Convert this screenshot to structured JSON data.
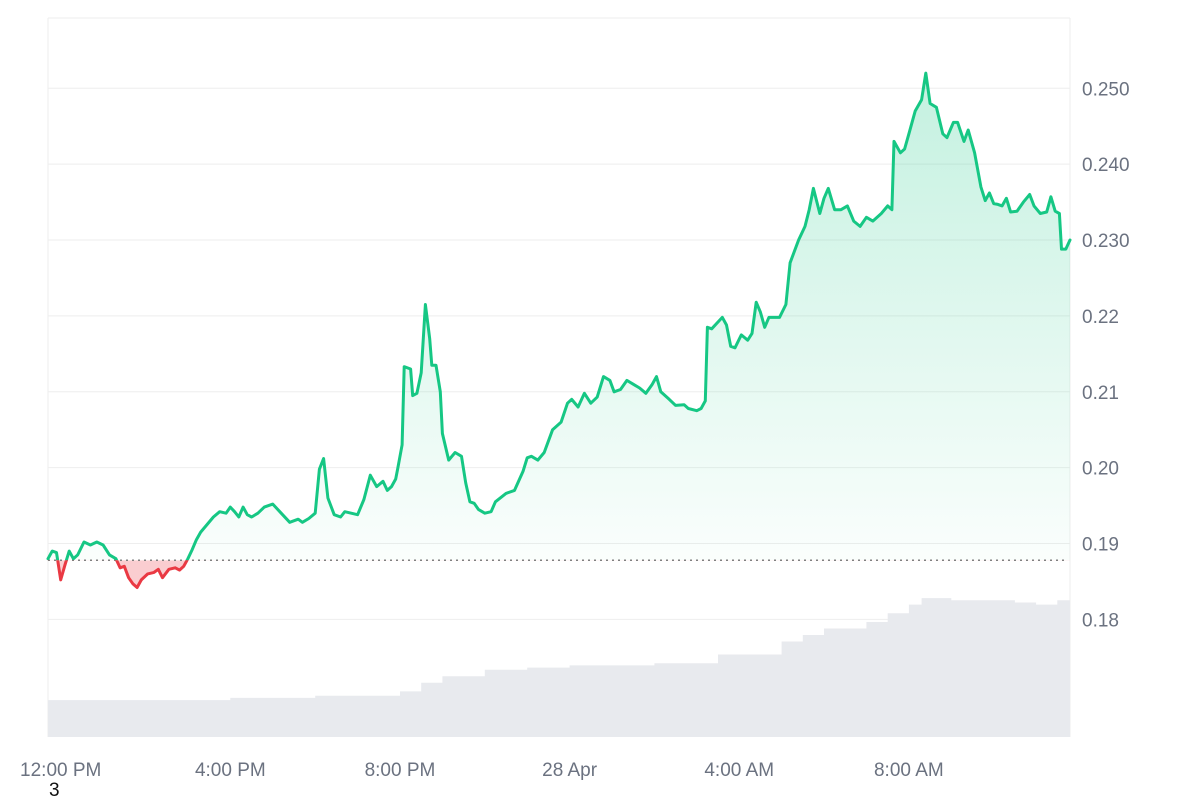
{
  "chart_data": {
    "type": "area",
    "title": "",
    "xlabel": "",
    "ylabel": "",
    "baseline": 0.1878,
    "ylim": [
      0.1645,
      0.259
    ],
    "y_ticks": [
      {
        "value": 0.18,
        "label": "0.18"
      },
      {
        "value": 0.19,
        "label": "0.19"
      },
      {
        "value": 0.2,
        "label": "0.20"
      },
      {
        "value": 0.21,
        "label": "0.21"
      },
      {
        "value": 0.22,
        "label": "0.22"
      },
      {
        "value": 0.23,
        "label": "0.230"
      },
      {
        "value": 0.24,
        "label": "0.240"
      },
      {
        "value": 0.25,
        "label": "0.250"
      }
    ],
    "x_range": [
      11.7,
      35.8
    ],
    "x_ticks": [
      {
        "value": 12,
        "label": "12:00 PM"
      },
      {
        "value": 16,
        "label": "4:00 PM"
      },
      {
        "value": 20,
        "label": "8:00 PM"
      },
      {
        "value": 24,
        "label": "28 Apr"
      },
      {
        "value": 28,
        "label": "4:00 AM"
      },
      {
        "value": 32,
        "label": "8:00 AM"
      }
    ],
    "x_unit": "hours from 00:00 on 27 Apr",
    "price_points": [
      [
        11.7,
        0.188
      ],
      [
        11.8,
        0.189
      ],
      [
        11.9,
        0.1888
      ],
      [
        12.0,
        0.1852
      ],
      [
        12.1,
        0.1872
      ],
      [
        12.2,
        0.189
      ],
      [
        12.3,
        0.188
      ],
      [
        12.4,
        0.1885
      ],
      [
        12.55,
        0.1902
      ],
      [
        12.7,
        0.1898
      ],
      [
        12.85,
        0.1902
      ],
      [
        13.0,
        0.1898
      ],
      [
        13.15,
        0.1885
      ],
      [
        13.3,
        0.188
      ],
      [
        13.4,
        0.1868
      ],
      [
        13.5,
        0.187
      ],
      [
        13.6,
        0.1855
      ],
      [
        13.7,
        0.1847
      ],
      [
        13.8,
        0.1842
      ],
      [
        13.9,
        0.1852
      ],
      [
        14.05,
        0.186
      ],
      [
        14.2,
        0.1862
      ],
      [
        14.3,
        0.1866
      ],
      [
        14.4,
        0.1855
      ],
      [
        14.55,
        0.1866
      ],
      [
        14.7,
        0.1868
      ],
      [
        14.8,
        0.1865
      ],
      [
        14.9,
        0.187
      ],
      [
        15.0,
        0.188
      ],
      [
        15.1,
        0.1892
      ],
      [
        15.2,
        0.1905
      ],
      [
        15.3,
        0.1915
      ],
      [
        15.45,
        0.1925
      ],
      [
        15.6,
        0.1935
      ],
      [
        15.75,
        0.1942
      ],
      [
        15.9,
        0.194
      ],
      [
        16.0,
        0.1948
      ],
      [
        16.1,
        0.1942
      ],
      [
        16.2,
        0.1935
      ],
      [
        16.3,
        0.1948
      ],
      [
        16.4,
        0.1938
      ],
      [
        16.5,
        0.1935
      ],
      [
        16.65,
        0.194
      ],
      [
        16.8,
        0.1948
      ],
      [
        17.0,
        0.1952
      ],
      [
        17.2,
        0.194
      ],
      [
        17.4,
        0.1928
      ],
      [
        17.6,
        0.1932
      ],
      [
        17.7,
        0.1928
      ],
      [
        17.85,
        0.1933
      ],
      [
        18.0,
        0.194
      ],
      [
        18.1,
        0.1998
      ],
      [
        18.2,
        0.2012
      ],
      [
        18.3,
        0.196
      ],
      [
        18.45,
        0.1938
      ],
      [
        18.6,
        0.1935
      ],
      [
        18.7,
        0.1942
      ],
      [
        18.85,
        0.194
      ],
      [
        19.0,
        0.1938
      ],
      [
        19.15,
        0.1958
      ],
      [
        19.3,
        0.199
      ],
      [
        19.45,
        0.1975
      ],
      [
        19.6,
        0.1982
      ],
      [
        19.7,
        0.197
      ],
      [
        19.8,
        0.1975
      ],
      [
        19.9,
        0.1985
      ],
      [
        19.95,
        0.2
      ],
      [
        20.05,
        0.203
      ],
      [
        20.1,
        0.2133
      ],
      [
        20.25,
        0.213
      ],
      [
        20.3,
        0.2095
      ],
      [
        20.4,
        0.2098
      ],
      [
        20.5,
        0.2125
      ],
      [
        20.6,
        0.2215
      ],
      [
        20.7,
        0.217
      ],
      [
        20.75,
        0.2135
      ],
      [
        20.85,
        0.2135
      ],
      [
        20.95,
        0.21
      ],
      [
        21.0,
        0.2045
      ],
      [
        21.15,
        0.201
      ],
      [
        21.3,
        0.202
      ],
      [
        21.45,
        0.2015
      ],
      [
        21.55,
        0.198
      ],
      [
        21.65,
        0.1955
      ],
      [
        21.75,
        0.1953
      ],
      [
        21.85,
        0.1945
      ],
      [
        22.0,
        0.194
      ],
      [
        22.15,
        0.1942
      ],
      [
        22.25,
        0.1955
      ],
      [
        22.5,
        0.1966
      ],
      [
        22.7,
        0.197
      ],
      [
        22.9,
        0.1995
      ],
      [
        23.0,
        0.2013
      ],
      [
        23.1,
        0.2015
      ],
      [
        23.25,
        0.201
      ],
      [
        23.4,
        0.202
      ],
      [
        23.6,
        0.205
      ],
      [
        23.8,
        0.206
      ],
      [
        23.95,
        0.2085
      ],
      [
        24.05,
        0.209
      ],
      [
        24.2,
        0.208
      ],
      [
        24.35,
        0.2098
      ],
      [
        24.5,
        0.2085
      ],
      [
        24.65,
        0.2093
      ],
      [
        24.8,
        0.212
      ],
      [
        24.95,
        0.2115
      ],
      [
        25.05,
        0.21
      ],
      [
        25.2,
        0.2103
      ],
      [
        25.35,
        0.2115
      ],
      [
        25.5,
        0.211
      ],
      [
        25.65,
        0.2105
      ],
      [
        25.8,
        0.2098
      ],
      [
        25.95,
        0.211
      ],
      [
        26.05,
        0.212
      ],
      [
        26.15,
        0.21
      ],
      [
        26.35,
        0.209
      ],
      [
        26.5,
        0.2082
      ],
      [
        26.7,
        0.2083
      ],
      [
        26.8,
        0.2078
      ],
      [
        27.0,
        0.2075
      ],
      [
        27.1,
        0.2078
      ],
      [
        27.2,
        0.2088
      ],
      [
        27.25,
        0.2185
      ],
      [
        27.35,
        0.2183
      ],
      [
        27.5,
        0.2192
      ],
      [
        27.6,
        0.2198
      ],
      [
        27.7,
        0.2188
      ],
      [
        27.8,
        0.216
      ],
      [
        27.9,
        0.2158
      ],
      [
        28.05,
        0.2175
      ],
      [
        28.2,
        0.2168
      ],
      [
        28.3,
        0.2177
      ],
      [
        28.4,
        0.2218
      ],
      [
        28.5,
        0.2205
      ],
      [
        28.6,
        0.2185
      ],
      [
        28.7,
        0.2198
      ],
      [
        28.8,
        0.2198
      ],
      [
        28.95,
        0.2198
      ],
      [
        29.1,
        0.2215
      ],
      [
        29.2,
        0.227
      ],
      [
        29.4,
        0.23
      ],
      [
        29.55,
        0.2318
      ],
      [
        29.65,
        0.234
      ],
      [
        29.75,
        0.2368
      ],
      [
        29.9,
        0.2335
      ],
      [
        30.0,
        0.2355
      ],
      [
        30.1,
        0.2368
      ],
      [
        30.25,
        0.234
      ],
      [
        30.4,
        0.234
      ],
      [
        30.55,
        0.2345
      ],
      [
        30.7,
        0.2325
      ],
      [
        30.85,
        0.2318
      ],
      [
        31.0,
        0.233
      ],
      [
        31.15,
        0.2325
      ],
      [
        31.35,
        0.2335
      ],
      [
        31.5,
        0.2345
      ],
      [
        31.6,
        0.234
      ],
      [
        31.65,
        0.243
      ],
      [
        31.8,
        0.2415
      ],
      [
        31.9,
        0.242
      ],
      [
        32.0,
        0.244
      ],
      [
        32.15,
        0.247
      ],
      [
        32.3,
        0.2485
      ],
      [
        32.4,
        0.252
      ],
      [
        32.5,
        0.248
      ],
      [
        32.65,
        0.2475
      ],
      [
        32.8,
        0.244
      ],
      [
        32.9,
        0.2435
      ],
      [
        33.05,
        0.2455
      ],
      [
        33.15,
        0.2455
      ],
      [
        33.3,
        0.243
      ],
      [
        33.4,
        0.2445
      ],
      [
        33.55,
        0.2415
      ],
      [
        33.7,
        0.237
      ],
      [
        33.8,
        0.2352
      ],
      [
        33.9,
        0.2362
      ],
      [
        34.0,
        0.2348
      ],
      [
        34.1,
        0.2347
      ],
      [
        34.2,
        0.2345
      ],
      [
        34.3,
        0.2355
      ],
      [
        34.4,
        0.2337
      ],
      [
        34.55,
        0.2338
      ],
      [
        34.7,
        0.235
      ],
      [
        34.85,
        0.236
      ],
      [
        34.95,
        0.2345
      ],
      [
        35.1,
        0.2335
      ],
      [
        35.25,
        0.2337
      ],
      [
        35.35,
        0.2357
      ],
      [
        35.45,
        0.2338
      ],
      [
        35.55,
        0.2335
      ],
      [
        35.6,
        0.2288
      ],
      [
        35.7,
        0.2288
      ],
      [
        35.8,
        0.23
      ]
    ],
    "volume": {
      "range": [
        0,
        1
      ],
      "points": [
        [
          11.7,
          0.17
        ],
        [
          13.9,
          0.17
        ],
        [
          13.9,
          0.17
        ],
        [
          16.0,
          0.17
        ],
        [
          16.0,
          0.18
        ],
        [
          18.0,
          0.18
        ],
        [
          18.0,
          0.19
        ],
        [
          20.0,
          0.19
        ],
        [
          20.0,
          0.21
        ],
        [
          20.5,
          0.21
        ],
        [
          20.5,
          0.25
        ],
        [
          21.0,
          0.25
        ],
        [
          21.0,
          0.28
        ],
        [
          22.0,
          0.28
        ],
        [
          22.0,
          0.31
        ],
        [
          23.0,
          0.31
        ],
        [
          23.0,
          0.32
        ],
        [
          24.0,
          0.32
        ],
        [
          24.0,
          0.33
        ],
        [
          26.0,
          0.33
        ],
        [
          26.0,
          0.34
        ],
        [
          27.5,
          0.34
        ],
        [
          27.5,
          0.38
        ],
        [
          29.0,
          0.38
        ],
        [
          29.0,
          0.44
        ],
        [
          29.5,
          0.44
        ],
        [
          29.5,
          0.47
        ],
        [
          30.0,
          0.47
        ],
        [
          30.0,
          0.5
        ],
        [
          31.0,
          0.5
        ],
        [
          31.0,
          0.53
        ],
        [
          31.5,
          0.53
        ],
        [
          31.5,
          0.57
        ],
        [
          32.0,
          0.57
        ],
        [
          32.0,
          0.61
        ],
        [
          32.3,
          0.61
        ],
        [
          32.3,
          0.64
        ],
        [
          33.0,
          0.64
        ],
        [
          33.0,
          0.63
        ],
        [
          34.5,
          0.63
        ],
        [
          34.5,
          0.62
        ],
        [
          35.0,
          0.62
        ],
        [
          35.0,
          0.61
        ],
        [
          35.5,
          0.61
        ],
        [
          35.5,
          0.63
        ],
        [
          35.8,
          0.63
        ]
      ]
    },
    "colors": {
      "up_line": "#16c784",
      "down_line": "#ea3943",
      "up_fill": "#16c784",
      "down_fill": "#ea3943",
      "grid": "#eeeeee",
      "axis_text": "#6b7280",
      "volume_bar": "#e8eaee",
      "baseline_dots": "#808080"
    }
  },
  "footnote": "3"
}
